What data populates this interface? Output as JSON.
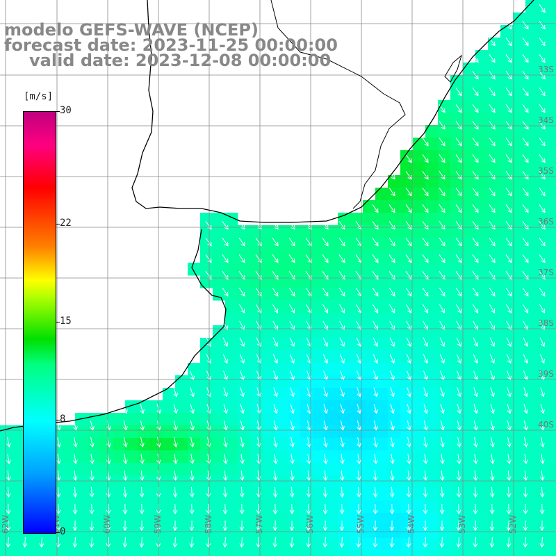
{
  "title": {
    "line1": "modelo GEFS-WAVE (NCEP)",
    "line2": "forecast date: 2023-11-25 00:00:00",
    "line3": "valid date: 2023-12-08 00:00:00"
  },
  "colorbar": {
    "unit": "[m/s]",
    "ticks": [
      {
        "label": "30",
        "value": 30
      },
      {
        "label": "22",
        "value": 22
      },
      {
        "label": "15",
        "value": 15
      },
      {
        "label": "8",
        "value": 8
      },
      {
        "label": "0",
        "value": 0
      }
    ],
    "min": 0,
    "max": 30
  },
  "lon_labels": [
    "62W",
    "61W",
    "60W",
    "59W",
    "58W",
    "57W",
    "56W",
    "55W",
    "54W",
    "53W",
    "52W",
    "51W"
  ],
  "lat_labels": [
    "33S",
    "34S",
    "35S",
    "36S",
    "37S",
    "38S",
    "39S",
    "40S"
  ],
  "wind_field": {
    "variable": "wind speed",
    "units": "m/s",
    "direction": "from north-east towards south-west (arrows)",
    "max_region": "Rio de la Plata estuary / offshore Uruguay ~13-14 m/s",
    "min_region": "south-central offshore ~7 m/s"
  },
  "colors": {
    "title": "#888888",
    "coast": "#000000",
    "grid": "#888888",
    "arrow": "#ffffff",
    "land": "#ffffff"
  }
}
